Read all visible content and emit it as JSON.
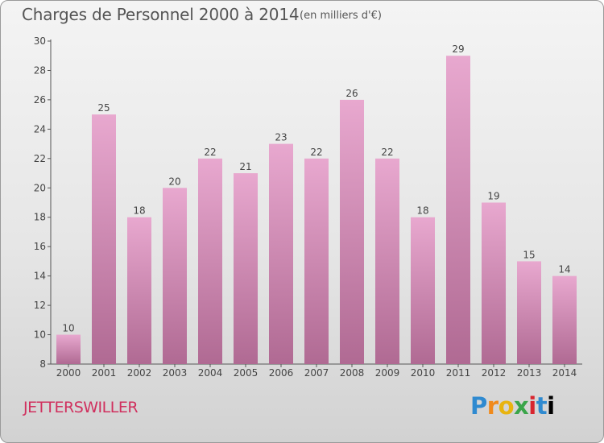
{
  "header": {
    "title": "Charges de Personnel 2000 à 2014",
    "subtitle": "(en milliers d'€)"
  },
  "footer": {
    "commune": "JETTERSWILLER",
    "logo_text": "Proxiti"
  },
  "colors": {
    "bar_top": "#e8a8cf",
    "bar_bottom": "#b06a93",
    "axis": "#555555",
    "text": "#444444",
    "commune": "#d0305e"
  },
  "chart_data": {
    "type": "bar",
    "title": "Charges de Personnel 2000 à 2014",
    "subtitle": "(en milliers d'€)",
    "categories": [
      "2000",
      "2001",
      "2002",
      "2003",
      "2004",
      "2005",
      "2006",
      "2007",
      "2008",
      "2009",
      "2010",
      "2011",
      "2012",
      "2013",
      "2014"
    ],
    "values": [
      10,
      25,
      18,
      20,
      22,
      21,
      23,
      22,
      26,
      22,
      18,
      29,
      19,
      15,
      14
    ],
    "ylim": [
      8,
      30
    ],
    "yticks": [
      8,
      10,
      12,
      14,
      16,
      18,
      20,
      22,
      24,
      26,
      28,
      30
    ],
    "grid": false,
    "data_labels": true,
    "legend": "none"
  }
}
